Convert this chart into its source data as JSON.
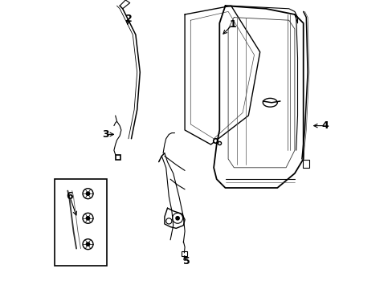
{
  "background_color": "#ffffff",
  "line_color": "#000000",
  "line_width": 0.8,
  "fig_width": 4.89,
  "fig_height": 3.6,
  "dpi": 100
}
